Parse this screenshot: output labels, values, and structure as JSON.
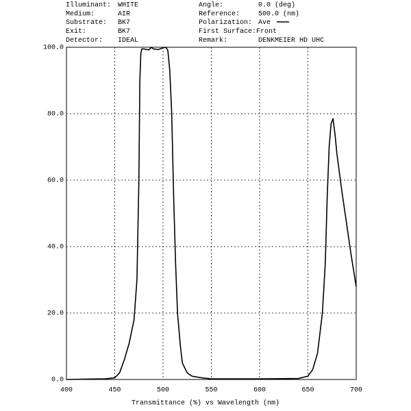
{
  "chart_data": {
    "type": "line",
    "info": [
      {
        "label": "Illuminant:",
        "value": "WHITE"
      },
      {
        "label": "Medium:",
        "value": "AIR"
      },
      {
        "label": "Substrate:",
        "value": "BK7"
      },
      {
        "label": "Exit:",
        "value": "BK7"
      },
      {
        "label": "Detector:",
        "value": "IDEAL"
      },
      {
        "label": "Angle:",
        "value": "0.0 (deg)"
      },
      {
        "label": "Reference:",
        "value": "500.0 (nm)"
      },
      {
        "label": "Polarization:",
        "value": "Ave"
      },
      {
        "label": "First Surface:",
        "value": "Front"
      },
      {
        "label": "Remark:",
        "value": "DENKMEIER HD UHC"
      }
    ],
    "x_label": "Transmittance (%)   vs   Wavelength (nm)",
    "x": [
      400,
      440,
      450,
      455,
      460,
      465,
      470,
      473,
      475,
      476,
      477,
      478,
      480,
      485,
      488,
      490,
      495,
      500,
      503,
      505,
      507,
      509,
      511,
      513,
      515,
      518,
      520,
      525,
      530,
      540,
      550,
      600,
      640,
      650,
      655,
      660,
      665,
      668,
      670,
      672,
      674,
      676,
      678,
      680,
      685,
      690,
      695,
      700
    ],
    "values": [
      0,
      0.2,
      0.5,
      2,
      6,
      11,
      18,
      30,
      60,
      90,
      98,
      99.5,
      99.5,
      99.2,
      100,
      99.5,
      99.3,
      99.8,
      100,
      99,
      93,
      80,
      55,
      35,
      20,
      10,
      5,
      2,
      1,
      0.5,
      0.2,
      0.2,
      0.3,
      1,
      3,
      8,
      20,
      35,
      55,
      70,
      77,
      78.5,
      74,
      68,
      57,
      47,
      37,
      28
    ],
    "color": "#000000",
    "xlim": [
      400,
      700
    ],
    "xticks": [
      400,
      450,
      500,
      550,
      600,
      650,
      700
    ],
    "ylim": [
      0,
      100
    ],
    "yticks": [
      {
        "value": 0,
        "label": "0.0"
      },
      {
        "value": 20,
        "label": "20.0"
      },
      {
        "value": 40,
        "label": "40.0"
      },
      {
        "value": 60,
        "label": "60.0"
      },
      {
        "value": 80,
        "label": "80.0"
      },
      {
        "value": 100,
        "label": "100.0"
      }
    ],
    "grid": true
  }
}
